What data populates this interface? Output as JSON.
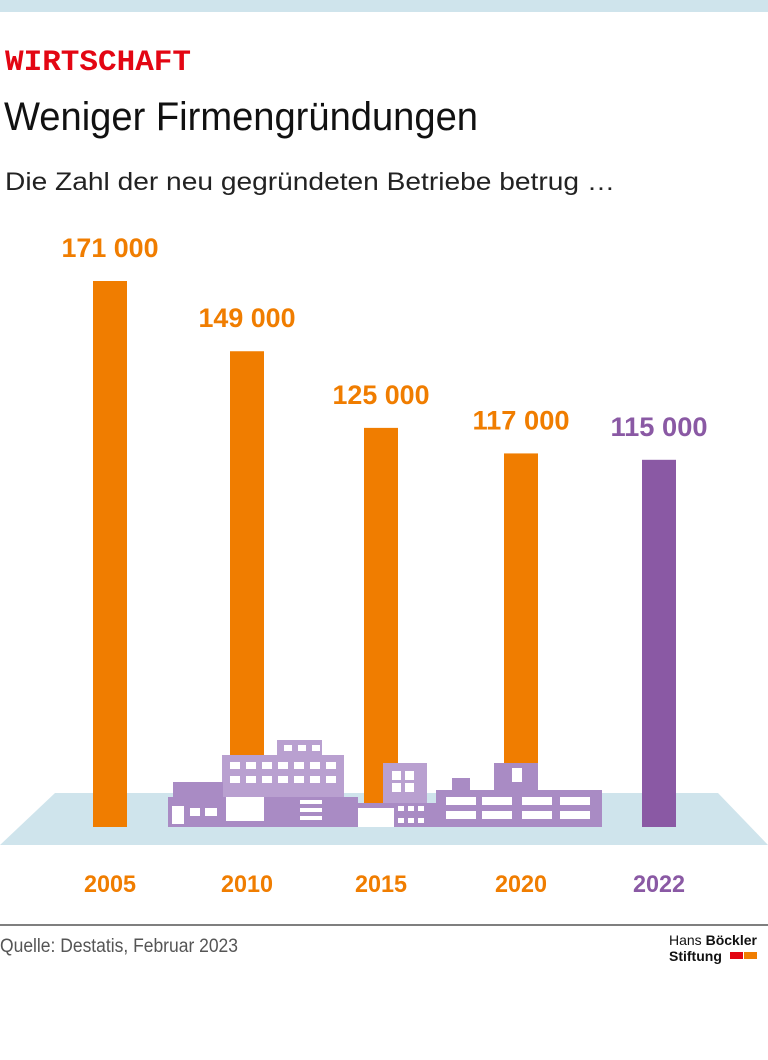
{
  "chart_data": {
    "type": "bar",
    "kicker": "WIRTSCHAFT",
    "title": "Weniger Firmengründungen",
    "subtitle": "Die Zahl der neu gegründeten Betriebe betrug …",
    "categories": [
      "2005",
      "2010",
      "2015",
      "2020",
      "2022"
    ],
    "values": [
      171000,
      149000,
      125000,
      117000,
      115000
    ],
    "value_labels": [
      "171 000",
      "149 000",
      "125 000",
      "117 000",
      "115 000"
    ],
    "colors": [
      "#f07d00",
      "#f07d00",
      "#f07d00",
      "#f07d00",
      "#8a59a4"
    ]
  },
  "footer": {
    "source": "Quelle: Destatis, Februar 2023",
    "logo_regular": "Hans",
    "logo_bold": "Böckler",
    "logo_line2": "Stiftung"
  }
}
